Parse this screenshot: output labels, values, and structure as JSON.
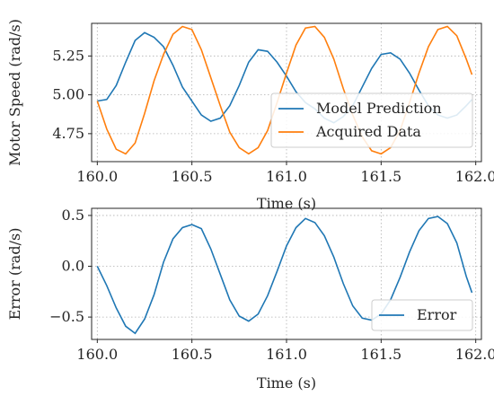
{
  "chart_data": [
    {
      "type": "line",
      "xlabel": "Time (s)",
      "ylabel": "Motor Speed (rad/s)",
      "xlim": [
        159.97,
        162.03
      ],
      "ylim": [
        4.57,
        5.46
      ],
      "xticks": [
        160.0,
        160.5,
        161.0,
        161.5,
        162.0
      ],
      "xtick_labels": [
        "160.0",
        "160.5",
        "161.0",
        "161.5",
        "162.0"
      ],
      "yticks": [
        4.75,
        5.0,
        5.25
      ],
      "ytick_labels": [
        "4.75",
        "5.00",
        "5.25"
      ],
      "grid": true,
      "legend_position": "lower-right",
      "x": [
        160.0,
        160.05,
        160.1,
        160.15,
        160.2,
        160.25,
        160.3,
        160.35,
        160.4,
        160.45,
        160.5,
        160.55,
        160.6,
        160.65,
        160.7,
        160.75,
        160.8,
        160.85,
        160.9,
        160.95,
        161.0,
        161.05,
        161.1,
        161.15,
        161.2,
        161.25,
        161.3,
        161.35,
        161.4,
        161.45,
        161.5,
        161.55,
        161.6,
        161.65,
        161.7,
        161.75,
        161.8,
        161.85,
        161.9,
        161.95,
        161.98
      ],
      "series": [
        {
          "name": "Model Prediction",
          "color": "#1f77b4",
          "values": [
            4.96,
            4.97,
            5.06,
            5.21,
            5.35,
            5.4,
            5.37,
            5.31,
            5.19,
            5.05,
            4.96,
            4.87,
            4.83,
            4.85,
            4.93,
            5.06,
            5.21,
            5.29,
            5.28,
            5.21,
            5.12,
            5.02,
            4.95,
            4.91,
            4.85,
            4.82,
            4.86,
            4.93,
            5.05,
            5.17,
            5.26,
            5.27,
            5.23,
            5.14,
            5.03,
            4.93,
            4.87,
            4.85,
            4.87,
            4.93,
            4.97
          ]
        },
        {
          "name": "Acquired Data",
          "color": "#ff7f0e",
          "values": [
            4.96,
            4.78,
            4.65,
            4.62,
            4.69,
            4.88,
            5.09,
            5.26,
            5.39,
            5.44,
            5.42,
            5.29,
            5.11,
            4.93,
            4.76,
            4.66,
            4.62,
            4.66,
            4.77,
            4.95,
            5.14,
            5.32,
            5.43,
            5.44,
            5.37,
            5.23,
            5.04,
            4.87,
            4.73,
            4.64,
            4.62,
            4.66,
            4.77,
            4.95,
            5.14,
            5.31,
            5.42,
            5.44,
            5.38,
            5.23,
            5.13
          ]
        }
      ]
    },
    {
      "type": "line",
      "xlabel": "Time (s)",
      "ylabel": "Error (rad/s)",
      "xlim": [
        159.97,
        162.03
      ],
      "ylim": [
        -0.72,
        0.57
      ],
      "xticks": [
        160.0,
        160.5,
        161.0,
        161.5,
        162.0
      ],
      "xtick_labels": [
        "160.0",
        "160.5",
        "161.0",
        "161.5",
        "162.0"
      ],
      "yticks": [
        -0.5,
        0.0,
        0.5
      ],
      "ytick_labels": [
        "−0.5",
        "0.0",
        "0.5"
      ],
      "grid": true,
      "legend_position": "lower-right",
      "x": [
        160.0,
        160.05,
        160.1,
        160.15,
        160.2,
        160.25,
        160.3,
        160.35,
        160.4,
        160.45,
        160.5,
        160.55,
        160.6,
        160.65,
        160.7,
        160.75,
        160.8,
        160.85,
        160.9,
        160.95,
        161.0,
        161.05,
        161.1,
        161.15,
        161.2,
        161.25,
        161.3,
        161.35,
        161.4,
        161.45,
        161.5,
        161.55,
        161.6,
        161.65,
        161.7,
        161.75,
        161.8,
        161.85,
        161.9,
        161.95,
        161.98
      ],
      "series": [
        {
          "name": "Error",
          "color": "#1f77b4",
          "values": [
            0.0,
            -0.19,
            -0.41,
            -0.59,
            -0.66,
            -0.52,
            -0.28,
            0.04,
            0.27,
            0.38,
            0.41,
            0.37,
            0.17,
            -0.08,
            -0.33,
            -0.49,
            -0.54,
            -0.47,
            -0.29,
            -0.05,
            0.2,
            0.38,
            0.47,
            0.43,
            0.3,
            0.09,
            -0.17,
            -0.39,
            -0.51,
            -0.53,
            -0.47,
            -0.33,
            -0.11,
            0.14,
            0.35,
            0.47,
            0.49,
            0.42,
            0.23,
            -0.1,
            -0.26
          ]
        }
      ]
    }
  ]
}
